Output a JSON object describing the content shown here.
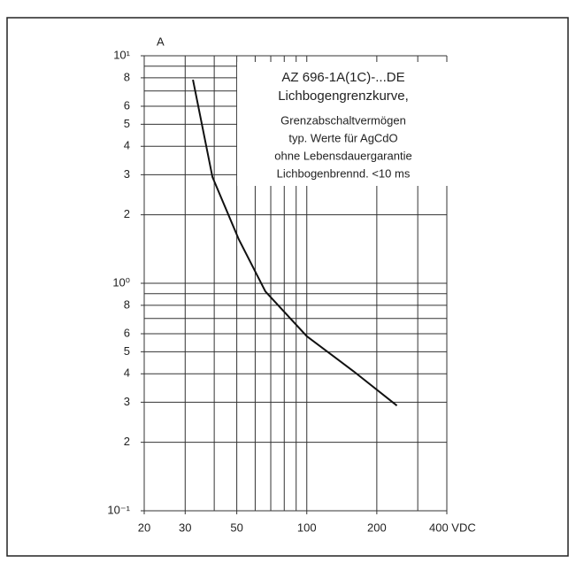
{
  "chart_data": {
    "type": "line",
    "log_x": true,
    "log_y": true,
    "y_label": "A",
    "annotations": [
      "AZ 696-1A(1C)-...DE",
      "Lichbogengrenzkurve,",
      "Grenzabschaltvermögen",
      "typ. Werte für AgCdO",
      "ohne Lebensdauergarantie",
      "Lichbogenbrennd. <10 ms"
    ],
    "xlim": [
      20,
      400
    ],
    "ylim": [
      0.1,
      10
    ],
    "xticks": [
      20,
      30,
      50,
      100,
      200,
      {
        "value": 400,
        "label": "400 VDC"
      }
    ],
    "yticks": [
      {
        "value": 10,
        "label": "10¹"
      },
      8,
      6,
      5,
      4,
      3,
      2,
      {
        "value": 1,
        "label": "10⁰"
      },
      {
        "value": 0.8,
        "label": "8"
      },
      {
        "value": 0.6,
        "label": "6"
      },
      {
        "value": 0.5,
        "label": "5"
      },
      {
        "value": 0.4,
        "label": "4"
      },
      {
        "value": 0.3,
        "label": "3"
      },
      {
        "value": 0.2,
        "label": "2"
      },
      {
        "value": 0.1,
        "label": "10⁻¹"
      }
    ],
    "xgrid": [
      20,
      30,
      40,
      50,
      60,
      70,
      80,
      90,
      100,
      200,
      300,
      400
    ],
    "ygrid": [
      0.1,
      0.2,
      0.3,
      0.4,
      0.5,
      0.6,
      0.7,
      0.8,
      0.9,
      1,
      2,
      3,
      4,
      5,
      6,
      7,
      8,
      9,
      10
    ],
    "grid": true,
    "series": [
      {
        "color": "#111111",
        "x": [
          32.4,
          39.3,
          51,
          66.4,
          100,
          159,
          244
        ],
        "values": [
          7.85,
          2.93,
          1.56,
          0.92,
          0.585,
          0.41,
          0.29
        ]
      }
    ]
  }
}
